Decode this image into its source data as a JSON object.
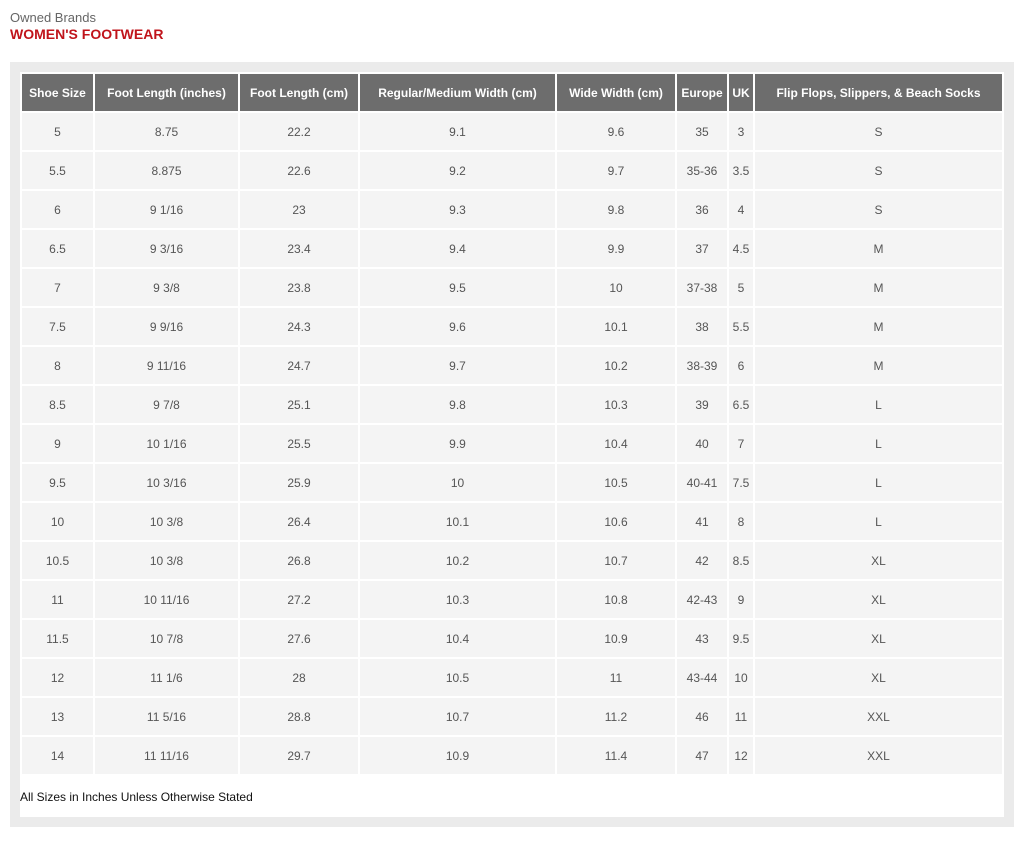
{
  "header": {
    "brand": "Owned Brands",
    "title": "WOMEN'S FOOTWEAR"
  },
  "table": {
    "columns": [
      "Shoe Size",
      "Foot Length (inches)",
      "Foot Length (cm)",
      "Regular/Medium Width (cm)",
      "Wide Width (cm)",
      "Europe",
      "UK",
      "Flip Flops, Slippers, & Beach Socks"
    ],
    "rows": [
      [
        "5",
        "8.75",
        "22.2",
        "9.1",
        "9.6",
        "35",
        "3",
        "S"
      ],
      [
        "5.5",
        "8.875",
        "22.6",
        "9.2",
        "9.7",
        "35-36",
        "3.5",
        "S"
      ],
      [
        "6",
        "9 1/16",
        "23",
        "9.3",
        "9.8",
        "36",
        "4",
        "S"
      ],
      [
        "6.5",
        "9 3/16",
        "23.4",
        "9.4",
        "9.9",
        "37",
        "4.5",
        "M"
      ],
      [
        "7",
        "9 3/8",
        "23.8",
        "9.5",
        "10",
        "37-38",
        "5",
        "M"
      ],
      [
        "7.5",
        "9 9/16",
        "24.3",
        "9.6",
        "10.1",
        "38",
        "5.5",
        "M"
      ],
      [
        "8",
        "9 11/16",
        "24.7",
        "9.7",
        "10.2",
        "38-39",
        "6",
        "M"
      ],
      [
        "8.5",
        "9 7/8",
        "25.1",
        "9.8",
        "10.3",
        "39",
        "6.5",
        "L"
      ],
      [
        "9",
        "10 1/16",
        "25.5",
        "9.9",
        "10.4",
        "40",
        "7",
        "L"
      ],
      [
        "9.5",
        "10 3/16",
        "25.9",
        "10",
        "10.5",
        "40-41",
        "7.5",
        "L"
      ],
      [
        "10",
        "10 3/8",
        "26.4",
        "10.1",
        "10.6",
        "41",
        "8",
        "L"
      ],
      [
        "10.5",
        "10 3/8",
        "26.8",
        "10.2",
        "10.7",
        "42",
        "8.5",
        "XL"
      ],
      [
        "11",
        "10 11/16",
        "27.2",
        "10.3",
        "10.8",
        "42-43",
        "9",
        "XL"
      ],
      [
        "11.5",
        "10 7/8",
        "27.6",
        "10.4",
        "10.9",
        "43",
        "9.5",
        "XL"
      ],
      [
        "12",
        "11 1/6",
        "28",
        "10.5",
        "11",
        "43-44",
        "10",
        "XL"
      ],
      [
        "13",
        "11 5/16",
        "28.8",
        "10.7",
        "11.2",
        "46",
        "11",
        "XXL"
      ],
      [
        "14",
        "11 11/16",
        "29.7",
        "10.9",
        "11.4",
        "47",
        "12",
        "XXL"
      ]
    ]
  },
  "footer": {
    "note": "All Sizes in Inches Unless Otherwise Stated"
  }
}
